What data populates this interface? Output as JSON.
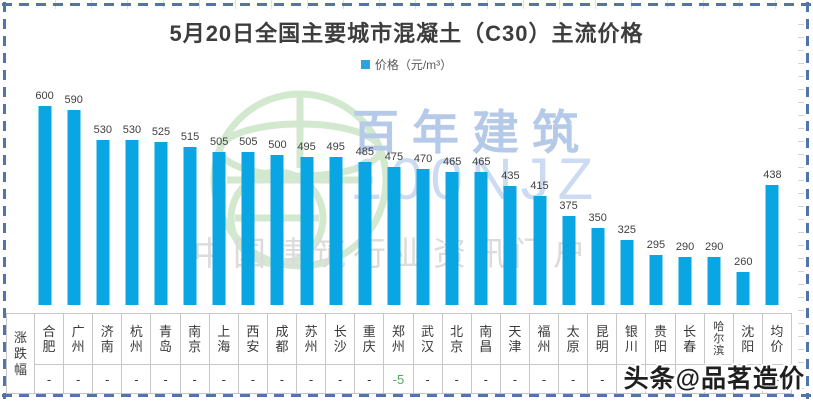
{
  "title": "5月20日全国主要城市混凝土（C30）主流价格",
  "legend": {
    "label": "价格（元/m³）",
    "marker_color": "#2aa6dd"
  },
  "chart_data": {
    "type": "bar",
    "title": "5月20日全国主要城市混凝土（C30）主流价格",
    "ylabel": "价格（元/m³）",
    "categories": [
      "合肥",
      "广州",
      "济南",
      "杭州",
      "青岛",
      "南京",
      "上海",
      "西安",
      "成都",
      "苏州",
      "长沙",
      "重庆",
      "郑州",
      "武汉",
      "北京",
      "南昌",
      "天津",
      "福州",
      "太原",
      "昆明",
      "银川",
      "贵阳",
      "长春",
      "哈尔滨",
      "沈阳",
      "均价"
    ],
    "values": [
      600,
      590,
      530,
      530,
      525,
      515,
      505,
      505,
      500,
      495,
      495,
      485,
      475,
      470,
      465,
      465,
      435,
      415,
      375,
      350,
      325,
      295,
      290,
      290,
      260,
      438
    ],
    "bar_color": "#0aa6e4",
    "data_labels": true,
    "y_axis_visible": false,
    "grid": false,
    "legend_position": "top",
    "ylim": [
      193,
      620
    ]
  },
  "table": {
    "row_label": "涨跌幅",
    "changes": [
      "-",
      "-",
      "-",
      "-",
      "-",
      "-",
      "-",
      "-",
      "-",
      "-",
      "-",
      "-",
      "-5",
      "-",
      "-",
      "-",
      "-",
      "-",
      "-",
      "-",
      "-",
      "-",
      "-",
      "-",
      "-",
      "-"
    ],
    "change_negative_color": "#52a85e"
  },
  "watermarks": {
    "globe_icon": "globe-logo",
    "brand_cn": "百年建筑",
    "brand_code": "100NJZ",
    "brand_tagline": "中国建筑行业资讯门户",
    "bottom_right": "头条@品茗造价"
  },
  "frame": {
    "marquee_color": "#5174ab"
  }
}
